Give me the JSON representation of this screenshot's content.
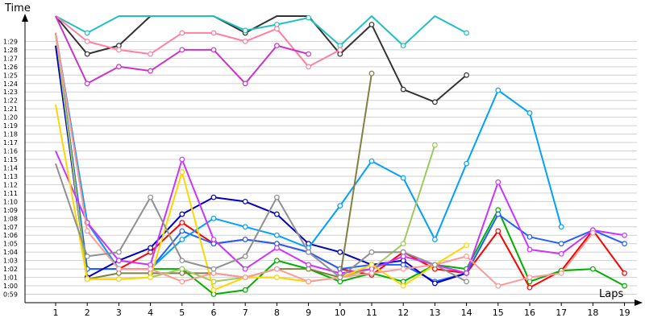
{
  "chart_data": {
    "type": "line",
    "ylabel": "Time",
    "xlabel": "Laps",
    "x": [
      1,
      2,
      3,
      4,
      5,
      6,
      7,
      8,
      9,
      10,
      11,
      12,
      13,
      14,
      15,
      16,
      17,
      18,
      19
    ],
    "xticks": [
      "1",
      "2",
      "3",
      "4",
      "5",
      "6",
      "7",
      "8",
      "9",
      "10",
      "11",
      "12",
      "13",
      "14",
      "15",
      "16",
      "17",
      "18",
      "19"
    ],
    "yticks": [
      "0:59",
      "1:00",
      "1:01",
      "1:02",
      "1:03",
      "1:04",
      "1:05",
      "1:06",
      "1:07",
      "1:08",
      "1:09",
      "1:10",
      "1:11",
      "1:12",
      "1:13",
      "1:14",
      "1:15",
      "1:16",
      "1:17",
      "1:18",
      "1:19",
      "1:20",
      "1:21",
      "1:22",
      "1:23",
      "1:24",
      "1:25",
      "1:26",
      "1:27",
      "1:28",
      "1:29"
    ],
    "ylim_seconds": [
      58,
      92
    ],
    "grid": true,
    "series": [
      {
        "color": "#ff0000",
        "values": [
          90,
          67.5,
          62,
          64,
          67.5,
          65,
          65.5,
          65,
          64,
          62,
          61.3,
          64,
          62,
          61.5,
          66.5,
          59.8,
          61.8,
          66.6,
          61.5
        ]
      },
      {
        "color": "#00b000",
        "values": [
          90,
          62,
          62,
          62,
          62,
          59,
          59.5,
          63,
          62,
          60.5,
          61.5,
          60.5,
          62.5,
          62,
          69,
          60.5,
          61.8,
          62,
          60
        ]
      },
      {
        "color": "#2060ff",
        "values": [
          90,
          62,
          62,
          62,
          66.5,
          65,
          65.5,
          65,
          64,
          62,
          62.5,
          62.5,
          60.5,
          61.5,
          68.5,
          65.8,
          65,
          66.6,
          65
        ]
      },
      {
        "color": "#0000c0",
        "values": [
          88.5,
          61,
          63,
          64.5,
          68.5,
          70.5,
          70,
          68.5,
          65,
          64,
          62.5,
          63,
          60.3,
          61.5,
          null,
          null,
          null,
          null,
          null
        ]
      },
      {
        "color": "#00a0ff",
        "values": [
          90,
          67.5,
          62,
          62,
          65.5,
          68,
          67,
          66,
          64.5,
          69.5,
          74.8,
          72.8,
          65.5,
          74.5,
          83.2,
          80.5,
          67,
          null,
          null
        ]
      },
      {
        "color": "#333333",
        "values": [
          94,
          87.5,
          88.5,
          94,
          94,
          94,
          90,
          93,
          93,
          87.5,
          91,
          83.3,
          81.8,
          85,
          null,
          null,
          null,
          null,
          null
        ]
      },
      {
        "color": "#20c0c0",
        "values": [
          94,
          90,
          94,
          94,
          94,
          94,
          90.3,
          91,
          91.8,
          88.5,
          94,
          88.5,
          94,
          90,
          null,
          null,
          null,
          null,
          null
        ]
      },
      {
        "color": "#ff80a0",
        "values": [
          94,
          89,
          88,
          87.5,
          90,
          90,
          89,
          90.5,
          86,
          88,
          null,
          null,
          null,
          null,
          null,
          null,
          null,
          null,
          null
        ]
      },
      {
        "color": "#cc33cc",
        "values": [
          94,
          84,
          86,
          85.5,
          88,
          88,
          84,
          88.5,
          87.5,
          null,
          null,
          null,
          null,
          null,
          null,
          null,
          null,
          null,
          null
        ]
      },
      {
        "color": "#808040",
        "values": [
          90,
          60.8,
          61.5,
          61.5,
          61.5,
          61.5,
          61,
          62,
          62,
          61,
          85.2,
          null,
          null,
          null,
          null,
          null,
          null,
          null,
          null
        ]
      },
      {
        "color": "#a0c860",
        "values": [
          90,
          60.8,
          60.8,
          61,
          62,
          60.5,
          61,
          61,
          60.5,
          61,
          62,
          65,
          76.7,
          null,
          null,
          null,
          null,
          null,
          null
        ]
      },
      {
        "color": "#cc33ff",
        "values": [
          76,
          67.5,
          63,
          62.5,
          75,
          65.5,
          62,
          64.5,
          62.5,
          61.5,
          62,
          63.5,
          62.5,
          61.5,
          72.3,
          64.3,
          63.8,
          66.6,
          66
        ]
      },
      {
        "color": "#ffd700",
        "values": [
          81.5,
          60.8,
          60.8,
          61,
          73.5,
          59.5,
          61,
          61,
          60.5,
          61,
          62.5,
          60,
          62.5,
          64.8,
          null,
          null,
          null,
          null,
          null
        ]
      },
      {
        "color": "#ff9999",
        "values": [
          90,
          66.5,
          62,
          62,
          60.5,
          61.5,
          61,
          62,
          60.5,
          61,
          61.5,
          62,
          62.5,
          63.5,
          60,
          61,
          61.5,
          66.3,
          null
        ]
      },
      {
        "color": "#909090",
        "values": [
          74.5,
          63.5,
          64,
          70.5,
          63,
          62,
          63.5,
          70.5,
          64,
          61,
          64,
          64,
          62.5,
          60.5,
          null,
          null,
          null,
          null,
          null
        ]
      }
    ]
  }
}
